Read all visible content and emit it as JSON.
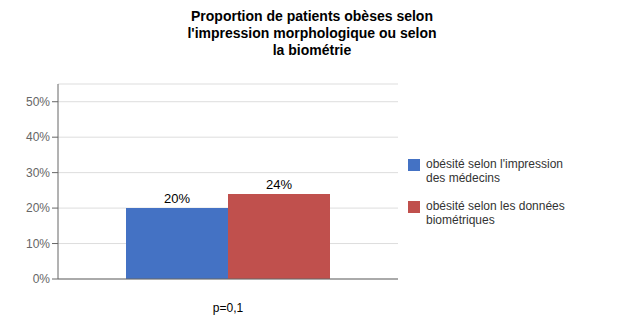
{
  "chart_data": {
    "type": "bar",
    "title": "Proportion de patients obèses selon\nl'impression morphologique ou selon\nla biométrie",
    "categories": [
      null
    ],
    "series": [
      {
        "name": "obésité selon l'impression\ndes médecins",
        "color": "#4472C4",
        "values": [
          0.2
        ],
        "value_labels": [
          "20%"
        ]
      },
      {
        "name": "obésité selon les données\nbiométriques",
        "color": "#C0504D",
        "values": [
          0.24
        ],
        "value_labels": [
          "24%"
        ]
      }
    ],
    "ylim": [
      0,
      0.55
    ],
    "yticks": [
      {
        "value": 0.0,
        "label": "0%"
      },
      {
        "value": 0.1,
        "label": "10%"
      },
      {
        "value": 0.2,
        "label": "20%"
      },
      {
        "value": 0.3,
        "label": "30%"
      },
      {
        "value": 0.4,
        "label": "40%"
      },
      {
        "value": 0.5,
        "label": "50%"
      }
    ],
    "grid": true,
    "legend": "right",
    "data_labels": true,
    "annotation": "p=0,1"
  }
}
